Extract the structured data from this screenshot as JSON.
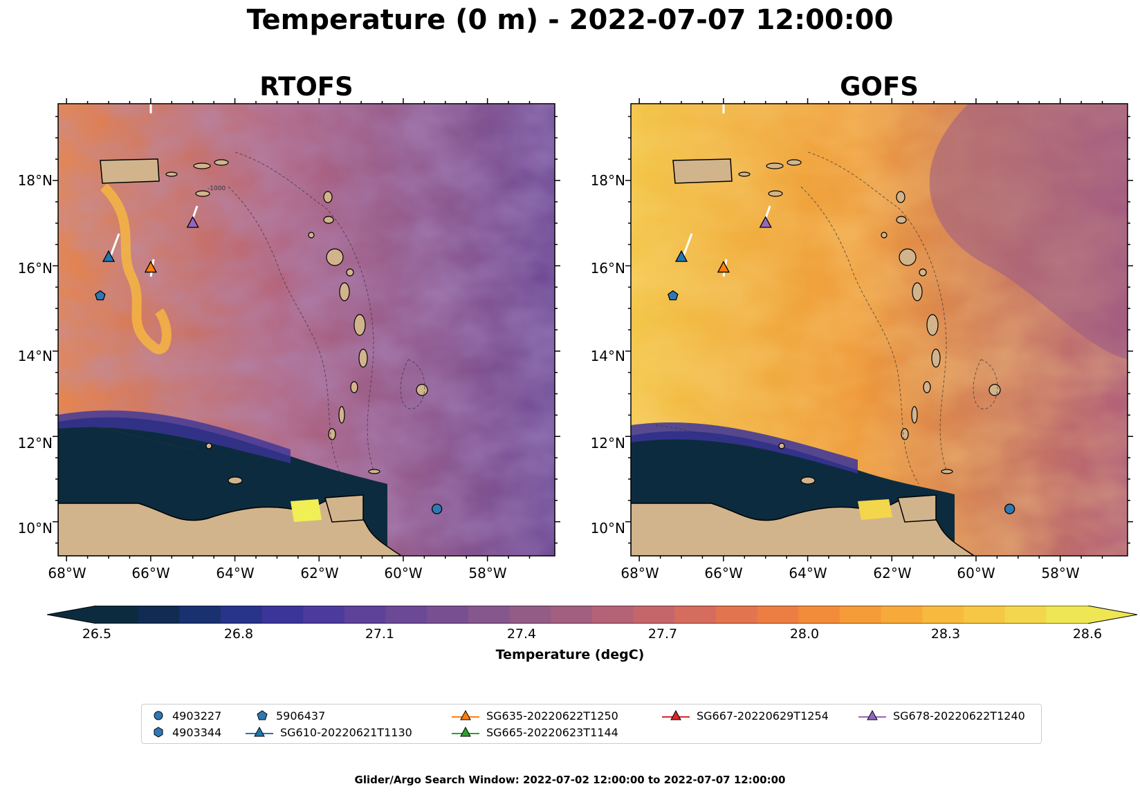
{
  "figure": {
    "title": "Temperature (0 m) - 2022-07-07 12:00:00",
    "footer": "Glider/Argo Search Window: 2022-07-02 12:00:00 to 2022-07-07 12:00:00"
  },
  "panels": [
    {
      "title": "RTOFS"
    },
    {
      "title": "GOFS"
    }
  ],
  "axes": {
    "lat_labels": [
      "18°N",
      "16°N",
      "14°N",
      "12°N",
      "10°N"
    ],
    "lon_labels": [
      "68°W",
      "66°W",
      "64°W",
      "62°W",
      "60°W",
      "58°W"
    ],
    "lon_range": [
      -68.2,
      -56.4
    ],
    "lat_range": [
      9.2,
      19.8
    ]
  },
  "bathymetry_label": "-1000",
  "colorbar": {
    "title": "Temperature (degC)",
    "ticks": [
      "26.5",
      "26.8",
      "27.1",
      "27.4",
      "27.7",
      "28.0",
      "28.3",
      "28.6"
    ],
    "colors": [
      "#0d2b3e",
      "#112b52",
      "#1a3170",
      "#28338a",
      "#3b3499",
      "#4d3a9e",
      "#5e4199",
      "#6b4996",
      "#785091",
      "#85578c",
      "#935c86",
      "#a25f7f",
      "#b46276",
      "#c5666b",
      "#d56c5d",
      "#e2744f",
      "#ec7e43",
      "#f38c3a",
      "#f69b38",
      "#f7aa3a",
      "#f7b93e",
      "#f6c744",
      "#f3d64b",
      "#eee653"
    ],
    "extend": "both"
  },
  "legend": {
    "items": [
      {
        "label": "4903227",
        "marker": "circle",
        "color": "#2f78b5"
      },
      {
        "label": "4903344",
        "marker": "hexagon",
        "color": "#2f78b5"
      },
      {
        "label": "5906437",
        "marker": "pentagon",
        "color": "#2f78b5"
      },
      {
        "label": "SG610-20220621T1130",
        "marker": "triangle",
        "color": "#1f77b4"
      },
      {
        "label": "SG635-20220622T1250",
        "marker": "triangle",
        "color": "#ff7f0e"
      },
      {
        "label": "SG665-20220623T1144",
        "marker": "triangle",
        "color": "#2ca02c"
      },
      {
        "label": "SG667-20220629T1254",
        "marker": "triangle",
        "color": "#d62728"
      },
      {
        "label": "SG678-20220622T1240",
        "marker": "triangle",
        "color": "#9467bd"
      }
    ]
  },
  "markers": [
    {
      "id": "4903227",
      "type": "circle",
      "lon": -59.2,
      "lat": 10.3,
      "color": "#2f78b5"
    },
    {
      "id": "5906437",
      "type": "pentagon",
      "lon": -67.2,
      "lat": 15.3,
      "color": "#2f78b5"
    },
    {
      "id": "SG610",
      "type": "triangle",
      "lon": -67.0,
      "lat": 16.2,
      "color": "#1f77b4"
    },
    {
      "id": "SG635",
      "type": "triangle",
      "lon": -66.0,
      "lat": 15.95,
      "color": "#ff7f0e"
    },
    {
      "id": "SG678",
      "type": "triangle",
      "lon": -65.0,
      "lat": 17.0,
      "color": "#9467bd"
    }
  ]
}
